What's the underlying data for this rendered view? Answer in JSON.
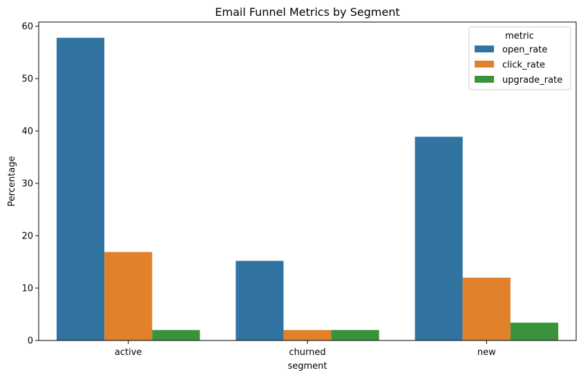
{
  "chart_data": {
    "type": "bar",
    "title": "Email Funnel Metrics by Segment",
    "xlabel": "segment",
    "ylabel": "Percentage",
    "categories": [
      "active",
      "churned",
      "new"
    ],
    "series": [
      {
        "name": "open_rate",
        "color": "#3274a1",
        "values": [
          57.8,
          15.2,
          38.9
        ]
      },
      {
        "name": "click_rate",
        "color": "#e1812c",
        "values": [
          16.9,
          2.0,
          12.0
        ]
      },
      {
        "name": "upgrade_rate",
        "color": "#3a923a",
        "values": [
          2.0,
          2.0,
          3.4
        ]
      }
    ],
    "ylim": [
      0,
      60.8
    ],
    "yticks": [
      0,
      10,
      20,
      30,
      40,
      50,
      60
    ],
    "legend": {
      "title": "metric",
      "position": "top-right"
    },
    "grid": false
  }
}
